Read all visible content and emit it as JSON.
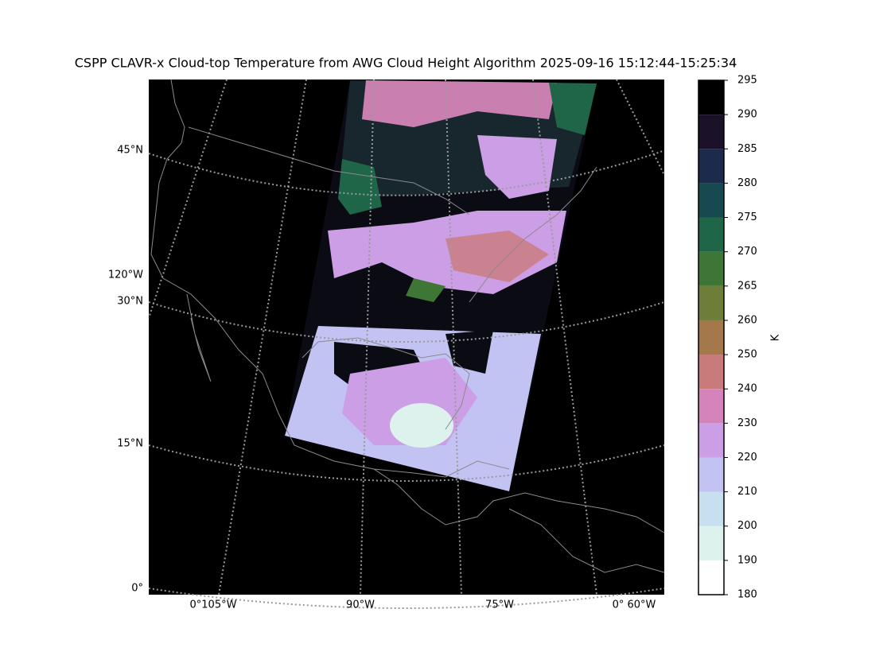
{
  "title": "CSPP CLAVR-x Cloud-top Temperature from AWG Cloud Height Algorithm 2025-09-16 15:12:44-15:25:34",
  "lat_labels": [
    "45°N",
    "30°N",
    "15°N",
    "0°"
  ],
  "lon_labels_left": [
    "120°W"
  ],
  "lon_labels_bottom": [
    "0°105°W",
    "90°W",
    "75°W",
    "0° 60°W"
  ],
  "colorbar": {
    "label": "K",
    "boundaries": [
      180,
      190,
      200,
      210,
      220,
      230,
      240,
      250,
      260,
      265,
      270,
      275,
      280,
      285,
      290,
      295
    ],
    "colors": [
      "#ffffff",
      "#ddf2ec",
      "#c6e0f0",
      "#c3c3f3",
      "#cc9ee6",
      "#d484bb",
      "#c97a7a",
      "#a4784a",
      "#6e7d37",
      "#3e7636",
      "#1f6649",
      "#174950",
      "#1c2a4b",
      "#1b1128",
      "#000000"
    ]
  }
}
